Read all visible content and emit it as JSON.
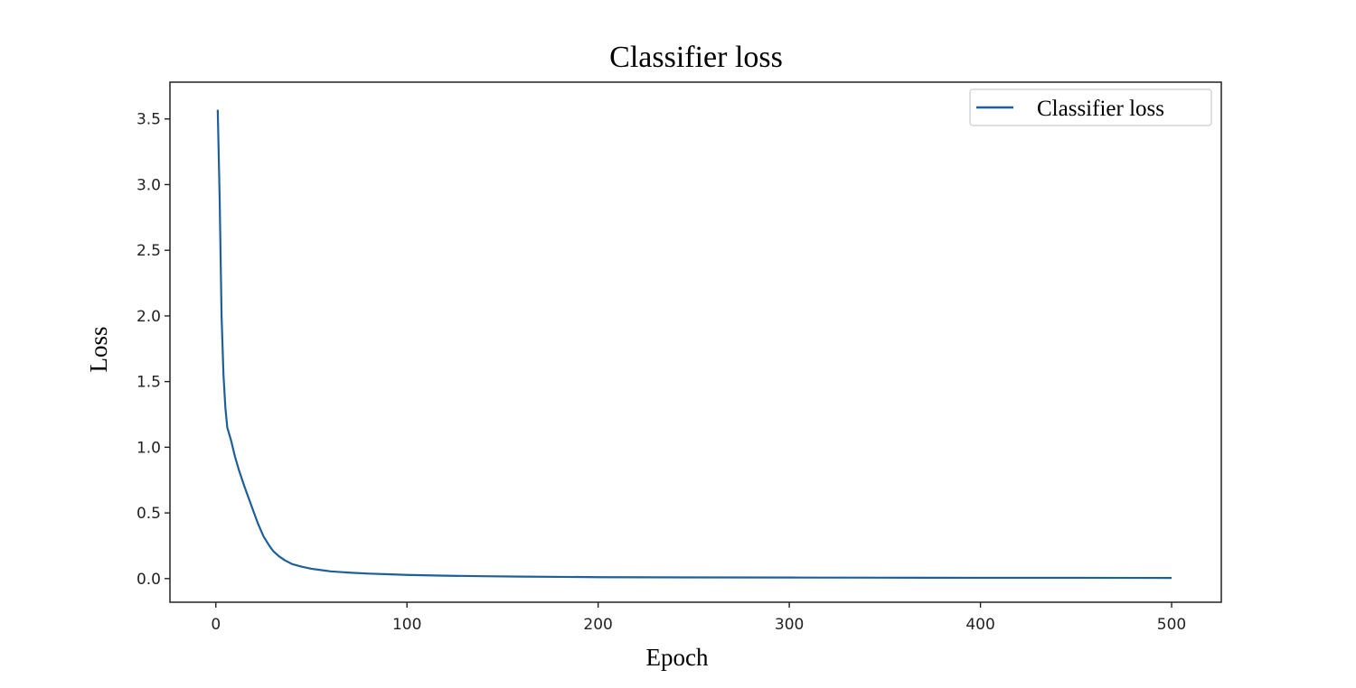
{
  "chart_data": {
    "type": "line",
    "title": "Classifier loss",
    "xlabel": "Epoch",
    "ylabel": "Loss",
    "xlim": [
      -24,
      526
    ],
    "ylim": [
      -0.18,
      3.78
    ],
    "xticks": [
      0,
      100,
      200,
      300,
      400,
      500
    ],
    "yticks": [
      0.0,
      0.5,
      1.0,
      1.5,
      2.0,
      2.5,
      3.0,
      3.5
    ],
    "ytick_labels": [
      "0.0",
      "0.5",
      "1.0",
      "1.5",
      "2.0",
      "2.5",
      "3.0",
      "3.5"
    ],
    "grid": false,
    "legend_position": "top-right",
    "series": [
      {
        "name": "Classifier loss",
        "color": "#1f5f99",
        "x": [
          1,
          2,
          3,
          4,
          5,
          6,
          8,
          10,
          12,
          15,
          18,
          20,
          22,
          25,
          28,
          30,
          33,
          36,
          40,
          45,
          50,
          55,
          60,
          70,
          80,
          90,
          100,
          120,
          140,
          160,
          180,
          200,
          250,
          300,
          350,
          400,
          450,
          500
        ],
        "y": [
          3.57,
          2.9,
          2.0,
          1.55,
          1.3,
          1.15,
          1.05,
          0.93,
          0.83,
          0.7,
          0.58,
          0.5,
          0.42,
          0.32,
          0.25,
          0.21,
          0.17,
          0.14,
          0.11,
          0.09,
          0.075,
          0.065,
          0.055,
          0.045,
          0.038,
          0.033,
          0.028,
          0.022,
          0.018,
          0.015,
          0.013,
          0.011,
          0.009,
          0.008,
          0.007,
          0.006,
          0.006,
          0.005
        ]
      }
    ]
  }
}
